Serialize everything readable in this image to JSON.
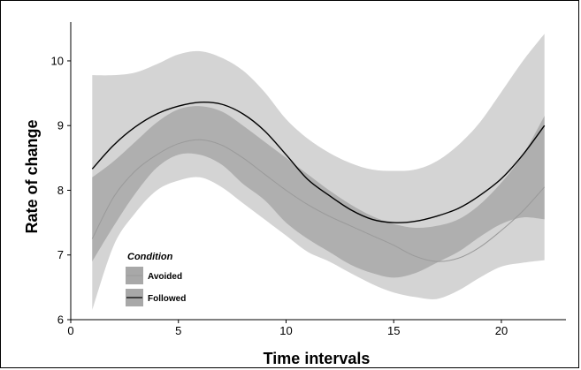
{
  "chart_data": {
    "type": "line",
    "xlabel": "Time intervals",
    "ylabel": "Rate of change",
    "xlim": [
      0,
      23
    ],
    "ylim": [
      6,
      10.6
    ],
    "xticks": [
      0,
      5,
      10,
      15,
      20
    ],
    "yticks": [
      6,
      7,
      8,
      9,
      10
    ],
    "grid": false,
    "legend": {
      "title": "Condition",
      "placement": "bottom-left",
      "entries": [
        "Avoided",
        "Followed"
      ]
    },
    "colors": {
      "avoided_line": "#9a9a9a",
      "followed_line": "#000000",
      "followed_band": "#d4d4d4",
      "avoided_band": "#a8a8a8"
    },
    "x": [
      1,
      2,
      3,
      4,
      5,
      6,
      7,
      8,
      9,
      10,
      11,
      12,
      13,
      14,
      15,
      16,
      17,
      18,
      19,
      20,
      21,
      22
    ],
    "series": [
      {
        "name": "Followed",
        "values": [
          8.33,
          8.7,
          8.98,
          9.18,
          9.3,
          9.36,
          9.33,
          9.18,
          8.92,
          8.55,
          8.17,
          7.92,
          7.7,
          7.55,
          7.5,
          7.52,
          7.6,
          7.72,
          7.92,
          8.18,
          8.55,
          9.0
        ],
        "lower": [
          6.15,
          7.15,
          7.65,
          8.0,
          8.15,
          8.2,
          8.05,
          7.8,
          7.55,
          7.3,
          7.05,
          6.9,
          6.72,
          6.55,
          6.42,
          6.35,
          6.32,
          6.45,
          6.65,
          6.82,
          6.88,
          6.92
        ],
        "upper": [
          9.78,
          9.78,
          9.82,
          9.95,
          10.1,
          10.15,
          10.05,
          9.85,
          9.52,
          9.1,
          8.8,
          8.58,
          8.42,
          8.32,
          8.3,
          8.32,
          8.45,
          8.7,
          9.05,
          9.52,
          10.0,
          10.42
        ]
      },
      {
        "name": "Avoided",
        "values": [
          7.25,
          7.9,
          8.3,
          8.55,
          8.72,
          8.78,
          8.7,
          8.5,
          8.25,
          8.0,
          7.78,
          7.6,
          7.45,
          7.3,
          7.15,
          6.98,
          6.9,
          6.95,
          7.12,
          7.38,
          7.68,
          8.05
        ],
        "lower": [
          6.9,
          7.45,
          7.95,
          8.35,
          8.55,
          8.55,
          8.4,
          8.1,
          7.85,
          7.5,
          7.25,
          7.05,
          6.85,
          6.72,
          6.65,
          6.72,
          6.88,
          7.05,
          7.28,
          7.48,
          7.58,
          7.55
        ],
        "upper": [
          8.2,
          8.45,
          8.75,
          9.05,
          9.25,
          9.3,
          9.22,
          9.0,
          8.75,
          8.5,
          8.25,
          8.0,
          7.78,
          7.6,
          7.48,
          7.42,
          7.45,
          7.55,
          7.78,
          8.12,
          8.55,
          9.15
        ]
      }
    ]
  }
}
